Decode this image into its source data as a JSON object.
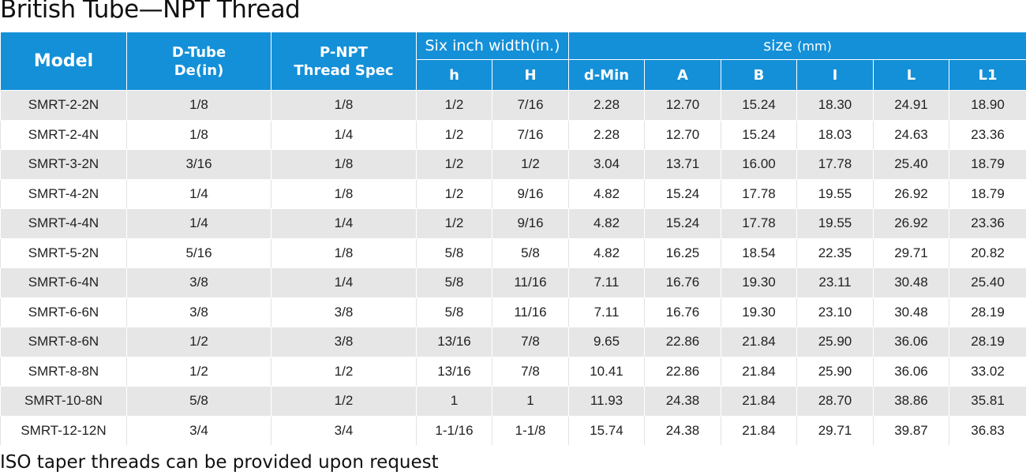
{
  "title": "British Tube—NPT Thread",
  "header": {
    "model": "Model",
    "dtube_line1": "D-Tube",
    "dtube_line2": "De(in)",
    "pnpt_line1": "P-NPT",
    "pnpt_line2": "Thread Spec",
    "six_inch": "Six inch width(in.)",
    "size_main": "size",
    "size_unit": "(mm)",
    "subcols": [
      "h",
      "H",
      "d-Min",
      "A",
      "B",
      "I",
      "L",
      "L1"
    ]
  },
  "rows": [
    [
      "SMRT-2-2N",
      "1/8",
      "1/8",
      "1/2",
      "7/16",
      "2.28",
      "12.70",
      "15.24",
      "18.30",
      "24.91",
      "18.90"
    ],
    [
      "SMRT-2-4N",
      "1/8",
      "1/4",
      "1/2",
      "7/16",
      "2.28",
      "12.70",
      "15.24",
      "18.03",
      "24.63",
      "23.36"
    ],
    [
      "SMRT-3-2N",
      "3/16",
      "1/8",
      "1/2",
      "1/2",
      "3.04",
      "13.71",
      "16.00",
      "17.78",
      "25.40",
      "18.79"
    ],
    [
      "SMRT-4-2N",
      "1/4",
      "1/8",
      "1/2",
      "9/16",
      "4.82",
      "15.24",
      "17.78",
      "19.55",
      "26.92",
      "18.79"
    ],
    [
      "SMRT-4-4N",
      "1/4",
      "1/4",
      "1/2",
      "9/16",
      "4.82",
      "15.24",
      "17.78",
      "19.55",
      "26.92",
      "23.36"
    ],
    [
      "SMRT-5-2N",
      "5/16",
      "1/8",
      "5/8",
      "5/8",
      "4.82",
      "16.25",
      "18.54",
      "22.35",
      "29.71",
      "20.82"
    ],
    [
      "SMRT-6-4N",
      "3/8",
      "1/4",
      "5/8",
      "11/16",
      "7.11",
      "16.76",
      "19.30",
      "23.11",
      "30.48",
      "25.40"
    ],
    [
      "SMRT-6-6N",
      "3/8",
      "3/8",
      "5/8",
      "11/16",
      "7.11",
      "16.76",
      "19.30",
      "23.10",
      "30.48",
      "28.19"
    ],
    [
      "SMRT-8-6N",
      "1/2",
      "3/8",
      "13/16",
      "7/8",
      "9.65",
      "22.86",
      "21.84",
      "25.90",
      "36.06",
      "28.19"
    ],
    [
      "SMRT-8-8N",
      "1/2",
      "1/2",
      "13/16",
      "7/8",
      "10.41",
      "22.86",
      "21.84",
      "25.90",
      "36.06",
      "33.02"
    ],
    [
      "SMRT-10-8N",
      "5/8",
      "1/2",
      "1",
      "1",
      "11.93",
      "24.38",
      "21.84",
      "28.70",
      "38.86",
      "35.81"
    ],
    [
      "SMRT-12-12N",
      "3/4",
      "3/4",
      "1-1/16",
      "1-1/8",
      "15.74",
      "24.38",
      "21.84",
      "29.71",
      "39.87",
      "36.83"
    ]
  ],
  "footnote": "ISO taper threads can be provided upon request",
  "colors": {
    "header_bg": "#1490d8",
    "row_alt_bg": "#e6e6e6"
  }
}
